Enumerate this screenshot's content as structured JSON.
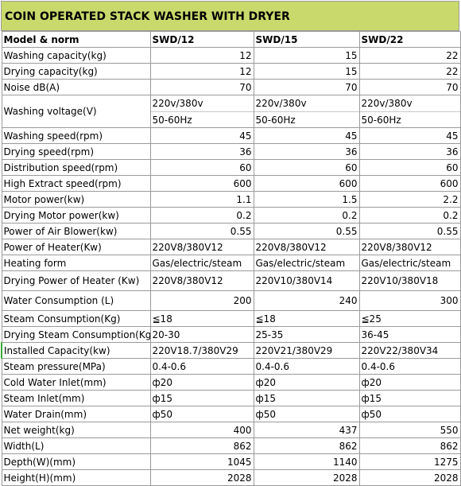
{
  "title": "COIN OPERATED STACK WASHER WITH DRYER",
  "header": [
    "Model & norm",
    "SWD/12",
    "SWD/15",
    "SWD/22"
  ],
  "rows": [
    {
      "label": "Washing capacity(kg)",
      "values": [
        "12",
        "15",
        "22"
      ],
      "align": "num"
    },
    {
      "label": "Drying capacity(kg)",
      "values": [
        "12",
        "15",
        "22"
      ],
      "align": "num"
    },
    {
      "label": "Noise dB(A)",
      "values": [
        "70",
        "70",
        "70"
      ],
      "align": "num"
    },
    {
      "label": "Washing voltage(V)",
      "values": [
        [
          "220v/380v",
          "50-60Hz"
        ],
        [
          "220v/380v",
          "50-60Hz"
        ],
        [
          "220v/380v",
          "50-60Hz"
        ]
      ],
      "align": "txt",
      "tall": true
    },
    {
      "label": "Washing speed(rpm)",
      "values": [
        "45",
        "45",
        "45"
      ],
      "align": "num"
    },
    {
      "label": "Drying speed(rpm)",
      "values": [
        "36",
        "36",
        "36"
      ],
      "align": "num"
    },
    {
      "label": "Distribution speed(rpm)",
      "values": [
        "60",
        "60",
        "60"
      ],
      "align": "num"
    },
    {
      "label": "High Extract speed(rpm)",
      "values": [
        "600",
        "600",
        "600"
      ],
      "align": "num"
    },
    {
      "label": "Motor power(kw)",
      "values": [
        "1.1",
        "1.5",
        "2.2"
      ],
      "align": "num"
    },
    {
      "label": "Drying Motor power(kw)",
      "values": [
        "0.2",
        "0.2",
        "0.2"
      ],
      "align": "num"
    },
    {
      "label": "Power of Air Blower(kw)",
      "values": [
        "0.55",
        "0.55",
        "0.55"
      ],
      "align": "num"
    },
    {
      "label": "Power of Heater(Kw)",
      "values": [
        "220V8/380V12",
        "220V8/380V12",
        "220V8/380V12"
      ],
      "align": "txt"
    },
    {
      "label": "Heating form",
      "values": [
        "Gas/electric/steam",
        "Gas/electric/steam",
        "Gas/electric/steam"
      ],
      "align": "txt"
    },
    {
      "label": "Drying Power of Heater (Kw)",
      "values": [
        "220V8/380V12",
        "220V10/380V14",
        "220V10/380V18"
      ],
      "align": "txt",
      "mid": true
    },
    {
      "label": "Water Consumption (L)",
      "values": [
        "200",
        "240",
        "300"
      ],
      "align": "num",
      "mid": true
    },
    {
      "label": "Steam Consumption(Kg)",
      "values": [
        "≦18",
        "≦18",
        "≦25"
      ],
      "align": "txt"
    },
    {
      "label": "Drying Steam Consumption(Kg)",
      "values": [
        "20-30",
        "25-35",
        "36-45"
      ],
      "align": "txt"
    },
    {
      "label": "Installed Capacity(kw)",
      "values": [
        "220V18.7/380V29",
        "220V21/380V29",
        "220V22/380V34"
      ],
      "align": "txt",
      "green": true
    },
    {
      "label": "Steam pressure(MPa)",
      "values": [
        "0.4-0.6",
        "0.4-0.6",
        "0.4-0.6"
      ],
      "align": "txt"
    },
    {
      "label": "Cold Water Inlet(mm)",
      "values": [
        "ф20",
        "ф20",
        "ф20"
      ],
      "align": "txt"
    },
    {
      "label": "Steam Inlet(mm)",
      "values": [
        "ф15",
        "ф15",
        "ф15"
      ],
      "align": "txt"
    },
    {
      "label": "Water Drain(mm)",
      "values": [
        "ф50",
        "ф50",
        "ф50"
      ],
      "align": "txt"
    },
    {
      "label": "Net weight(kg)",
      "values": [
        "400",
        "437",
        "550"
      ],
      "align": "num"
    },
    {
      "label": "Width(L)",
      "values": [
        "862",
        "862",
        "862"
      ],
      "align": "num"
    },
    {
      "label": "Depth(W)(mm)",
      "values": [
        "1045",
        "1140",
        "1275"
      ],
      "align": "num"
    },
    {
      "label": "Height(H)(mm)",
      "values": [
        "2028",
        "2028",
        "2028"
      ],
      "align": "num"
    }
  ]
}
